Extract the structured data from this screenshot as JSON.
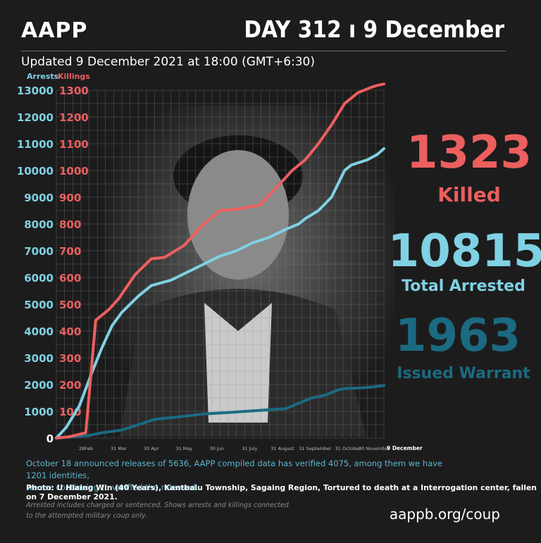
{
  "header": {
    "brand": "AAPP",
    "day_label": "DAY 312 ı 9 December",
    "updated": "Updated 9 December 2021 at 18:00 (GMT+6:30)"
  },
  "stats": {
    "killed": {
      "value": "1323",
      "label": "Killed",
      "color": "#ec5f5f"
    },
    "arrested": {
      "value": "10815",
      "label": "Total Arrested",
      "color": "#7fd1e3"
    },
    "warrant": {
      "value": "1963",
      "label": "Issued Warrant",
      "color": "#1b6a82"
    }
  },
  "notes": {
    "line1": "October 18 announced releases of 5636, AAPP compiled data has verified 4075, among them we have 1201 identities,",
    "line2": "we are continuing to verified the released.",
    "photo": "Photo:  U Hlaing Win (40 Years), Kantbalu Township, Sagaing Region, Tortured to death at a Interrogation center, fallen on  7 December 2021.",
    "foot1": "Arrested includes charged or sentenced. Shows arrests and killings connected",
    "foot2": "to the attempted military coup only.",
    "url": "aappb.org/coup"
  },
  "chart_data": {
    "type": "line",
    "left_axis_label": "Arrests",
    "right_axis_label": "Killings",
    "left_ticks": [
      "0",
      "1000",
      "2000",
      "3000",
      "4000",
      "5000",
      "6000",
      "7000",
      "8000",
      "9000",
      "10000",
      "11000",
      "12000",
      "13000"
    ],
    "right_ticks": [
      "0",
      "100",
      "200",
      "300",
      "400",
      "500",
      "600",
      "700",
      "800",
      "900",
      "1000",
      "1100",
      "1200",
      "1300"
    ],
    "ylim_arrests": [
      0,
      13000
    ],
    "ylim_killings": [
      0,
      1300
    ],
    "x_ticks": [
      "28Feb",
      "31 Mar",
      "30 Apr",
      "31 May",
      "30 Jun",
      "31 July",
      "31 August",
      "31 September",
      "31 October",
      "30 November",
      "9 December"
    ],
    "x_tick_positions": [
      0.09,
      0.19,
      0.29,
      0.39,
      0.49,
      0.59,
      0.69,
      0.79,
      0.89,
      0.97,
      1.0
    ],
    "series": [
      {
        "name": "Killings",
        "color": "#ec5f5f",
        "axis": "right",
        "x": [
          0,
          0.04,
          0.09,
          0.12,
          0.16,
          0.19,
          0.24,
          0.29,
          0.33,
          0.39,
          0.45,
          0.5,
          0.55,
          0.62,
          0.66,
          0.72,
          0.76,
          0.8,
          0.84,
          0.88,
          0.92,
          0.96,
          0.98,
          1.0
        ],
        "y": [
          0,
          5,
          20,
          440,
          480,
          520,
          610,
          670,
          675,
          720,
          800,
          850,
          855,
          870,
          920,
          1000,
          1040,
          1100,
          1170,
          1250,
          1290,
          1310,
          1318,
          1323
        ]
      },
      {
        "name": "Arrests",
        "color": "#7fd1e3",
        "axis": "left",
        "x": [
          0,
          0.03,
          0.07,
          0.11,
          0.14,
          0.17,
          0.2,
          0.25,
          0.29,
          0.35,
          0.4,
          0.45,
          0.5,
          0.55,
          0.6,
          0.65,
          0.7,
          0.74,
          0.76,
          0.8,
          0.84,
          0.88,
          0.9,
          0.95,
          0.98,
          1.0
        ],
        "y": [
          0,
          400,
          1200,
          2500,
          3400,
          4200,
          4700,
          5300,
          5700,
          5900,
          6200,
          6500,
          6800,
          7000,
          7300,
          7500,
          7800,
          8000,
          8200,
          8500,
          9000,
          10000,
          10200,
          10400,
          10600,
          10815
        ]
      },
      {
        "name": "Issued Warrant",
        "color": "#1b6a82",
        "axis": "left",
        "x": [
          0,
          0.1,
          0.14,
          0.2,
          0.25,
          0.3,
          0.38,
          0.45,
          0.52,
          0.58,
          0.64,
          0.7,
          0.74,
          0.78,
          0.82,
          0.86,
          0.88,
          0.92,
          0.96,
          1.0
        ],
        "y": [
          0,
          100,
          200,
          300,
          500,
          700,
          800,
          900,
          950,
          1000,
          1050,
          1100,
          1300,
          1500,
          1600,
          1800,
          1850,
          1870,
          1900,
          1963
        ]
      }
    ]
  }
}
